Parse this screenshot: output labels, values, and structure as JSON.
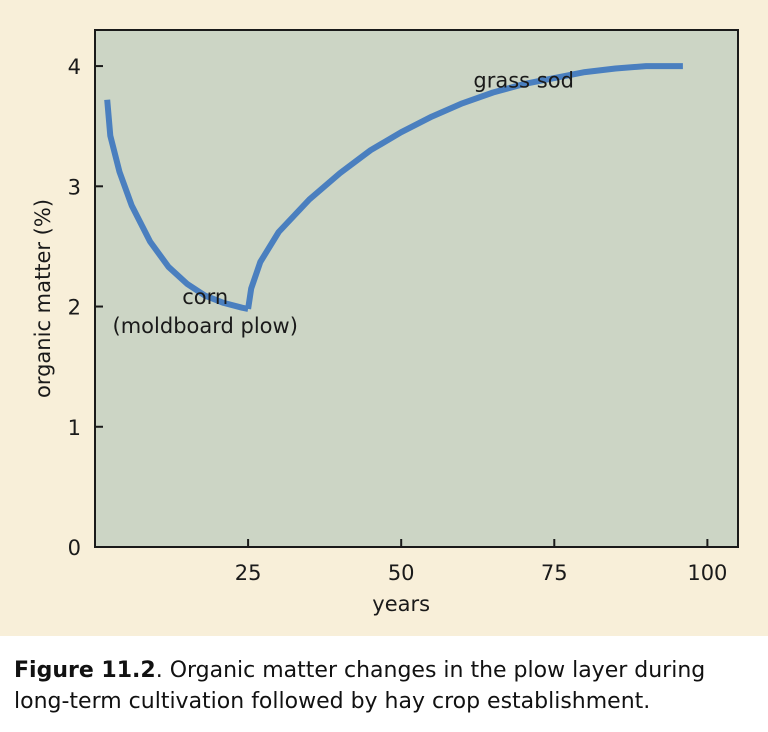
{
  "chart_data": {
    "type": "line",
    "xlabel": "years",
    "ylabel": "organic matter (%)",
    "xlim": [
      0,
      105
    ],
    "ylim": [
      0,
      4.3
    ],
    "x_ticks": [
      25,
      50,
      75,
      100
    ],
    "y_ticks": [
      0,
      1,
      2,
      3,
      4
    ],
    "grid": false,
    "background_color": "#ccd5c5",
    "line_color": "#4a7fbf",
    "series": [
      {
        "x": [
          2,
          2.5,
          4,
          6,
          9,
          12,
          15,
          18,
          21,
          24,
          25
        ],
        "y": [
          3.72,
          3.42,
          3.12,
          2.84,
          2.54,
          2.33,
          2.19,
          2.09,
          2.03,
          1.99,
          1.98
        ]
      },
      {
        "x": [
          25,
          25.5,
          27,
          30,
          35,
          40,
          45,
          50,
          55,
          60,
          65,
          70,
          75,
          80,
          85,
          90,
          96
        ],
        "y": [
          1.98,
          2.15,
          2.37,
          2.62,
          2.89,
          3.11,
          3.3,
          3.45,
          3.58,
          3.69,
          3.78,
          3.85,
          3.9,
          3.95,
          3.98,
          4.0,
          4.0
        ]
      }
    ],
    "annotations": [
      {
        "text": "corn",
        "x": 18,
        "y": 2.02
      },
      {
        "text": "(moldboard plow)",
        "x": 18,
        "y": 1.78
      },
      {
        "text": "grass sod",
        "x": 70,
        "y": 3.82
      }
    ]
  },
  "caption": {
    "label": "Figure 11.2",
    "text": ". Organic matter changes in the plow layer during long-term cultivation followed by hay crop establishment."
  }
}
